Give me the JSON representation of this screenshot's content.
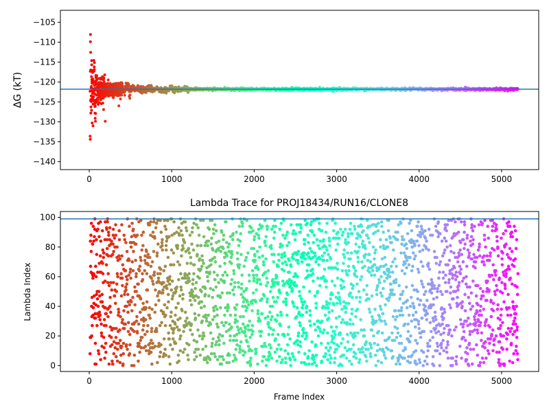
{
  "chart_data": [
    {
      "type": "scatter",
      "title": "",
      "xlabel": "",
      "ylabel": "ΔG (kT)",
      "xlim": [
        -350,
        5450
      ],
      "ylim": [
        -142,
        -102
      ],
      "xticks": [
        0,
        1000,
        2000,
        3000,
        4000,
        5000
      ],
      "yticks": [
        -105,
        -110,
        -115,
        -120,
        -125,
        -130,
        -135,
        -140
      ],
      "hline": -121.8,
      "hline_color": "#1f77b4",
      "grid": false,
      "legend": "none",
      "colormap": "rainbow (red at frame 0 to violet at last frame)",
      "n_frames": 5200,
      "description": "Running free energy estimate per frame; noisy early, converging near -121.8 after ~1000 frames",
      "series": [
        {
          "x": [
            10,
            20,
            30,
            35,
            40,
            45,
            50,
            60,
            70,
            80,
            90,
            100,
            120,
            150,
            200,
            250,
            300,
            400,
            500,
            700,
            1000,
            1500,
            2000,
            3000,
            4000,
            5000,
            5200
          ],
          "y": [
            -110,
            -130,
            -107.5,
            -128,
            -115,
            -125,
            -112,
            -123,
            -129,
            -118,
            -126,
            -121,
            -124,
            -117,
            -122.5,
            -120.5,
            -123,
            -121,
            -123.5,
            -122.5,
            -121.5,
            -121.7,
            -122,
            -121.6,
            -121.8,
            -121.8,
            -121.8
          ]
        }
      ]
    },
    {
      "type": "scatter",
      "title": "Lambda Trace for PROJ18434/RUN16/CLONE8",
      "xlabel": "Frame Index",
      "ylabel": "Lambda Index",
      "xlim": [
        -350,
        5450
      ],
      "ylim": [
        -4,
        104
      ],
      "xticks": [
        0,
        1000,
        2000,
        3000,
        4000,
        5000
      ],
      "yticks": [
        0,
        20,
        40,
        60,
        80,
        100
      ],
      "hline": 99,
      "hline_color": "#1f77b4",
      "grid": false,
      "legend": "none",
      "colormap": "rainbow (red at frame 0 to violet at last frame)",
      "n_frames": 5200,
      "description": "Lambda index visited at each frame, spread uniformly between 0 and 99 across all frames"
    }
  ]
}
